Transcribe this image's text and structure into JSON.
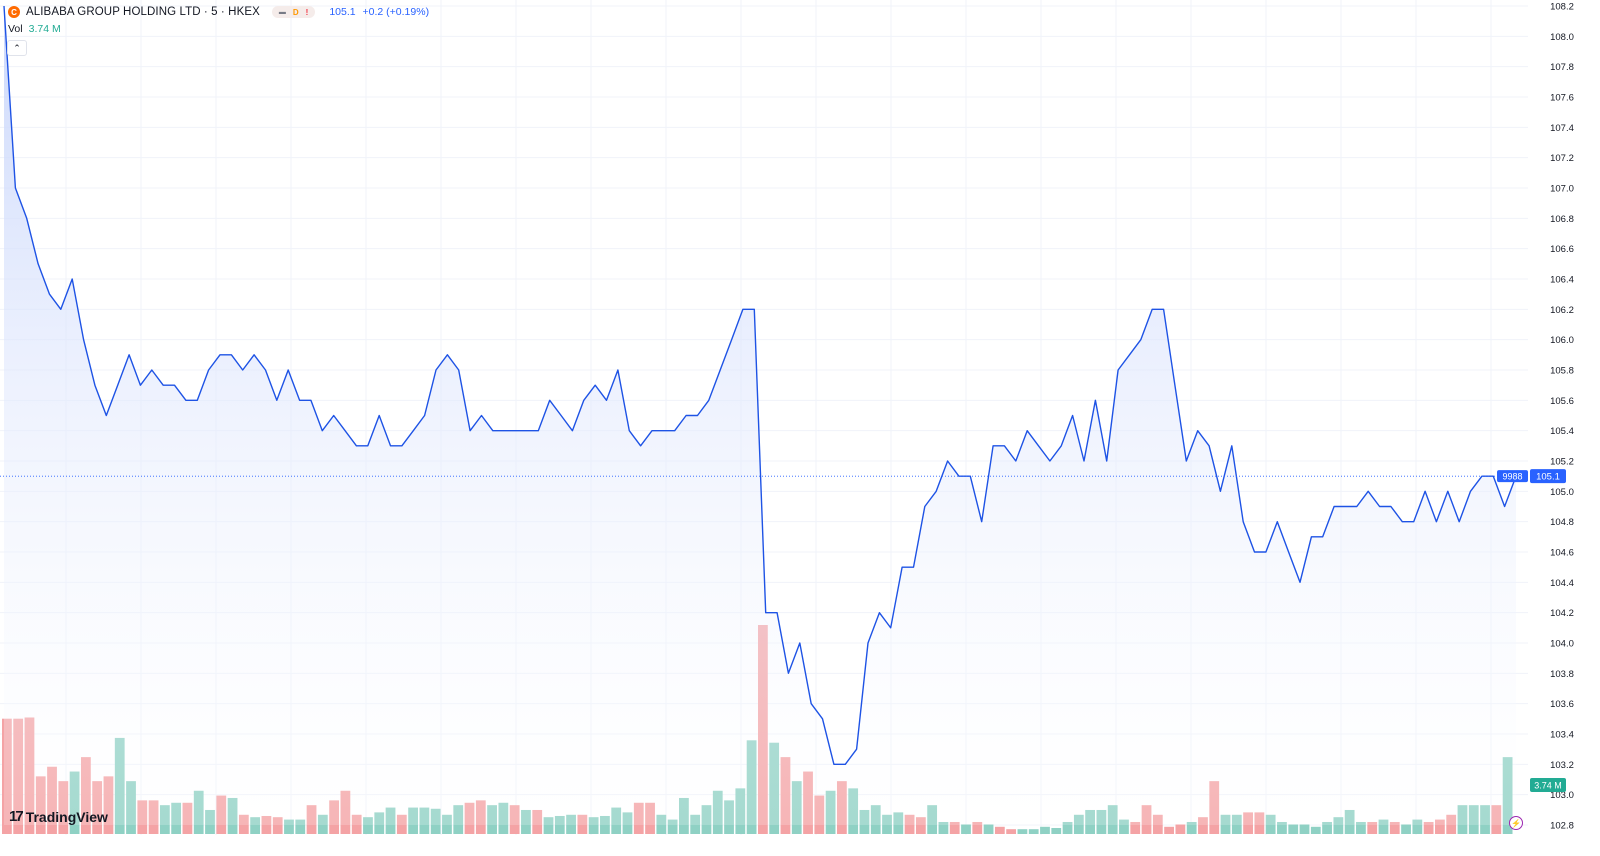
{
  "header": {
    "symbol_logo_icon": "alibaba-logo-icon",
    "symbol_title": "ALIBABA GROUP HOLDING LTD · 5 · HKEX",
    "pill_eye_icon": "eye-off-icon",
    "pill_d": "D",
    "pill_warn": "!",
    "last_price": "105.1",
    "change": "+0.2 (+0.19%)"
  },
  "volume_legend": {
    "label": "Vol",
    "value": "3.74 M",
    "collapse_icon": "chevron-up-icon"
  },
  "branding": {
    "logo_icon": "tradingview-logo-icon",
    "name": "TradingView"
  },
  "colors": {
    "line": "#1e53e5",
    "area_top": "#c6d4fb",
    "area_bottom": "#ffffff",
    "up_volume": "#8fd1c4",
    "down_volume": "#f4a3a5",
    "price_label_bg": "#2962ff",
    "volume_label_bg": "#22ab94",
    "grid": "#f0f3fa"
  },
  "price_labels": {
    "symbol_code": "9988",
    "last_price": "105.1",
    "volume": "3.74 M"
  },
  "replay_icon": "lightning-icon",
  "chart_data": {
    "type": "area",
    "title": "ALIBABA GROUP HOLDING LTD · 5 · HKEX",
    "ylim": [
      102.8,
      108.2
    ],
    "y_ticks": [
      "108.2",
      "108.0",
      "107.8",
      "107.6",
      "107.4",
      "107.2",
      "107.0",
      "106.8",
      "106.6",
      "106.4",
      "106.2",
      "106.0",
      "105.8",
      "105.6",
      "105.4",
      "105.2",
      "105.0",
      "104.8",
      "104.6",
      "104.4",
      "104.2",
      "104.0",
      "103.8",
      "103.6",
      "103.4",
      "103.2",
      "103.0",
      "102.8"
    ],
    "grid": true,
    "last_value": 105.1,
    "series": [
      {
        "values": [
          108.2,
          107.0,
          106.8,
          106.5,
          106.3,
          106.2,
          106.4,
          106.0,
          105.7,
          105.5,
          105.7,
          105.9,
          105.7,
          105.8,
          105.7,
          105.7,
          105.6,
          105.6,
          105.8,
          105.9,
          105.9,
          105.8,
          105.9,
          105.8,
          105.6,
          105.8,
          105.6,
          105.6,
          105.4,
          105.5,
          105.4,
          105.3,
          105.3,
          105.5,
          105.3,
          105.3,
          105.4,
          105.5,
          105.8,
          105.9,
          105.8,
          105.4,
          105.5,
          105.4,
          105.4,
          105.4,
          105.4,
          105.4,
          105.6,
          105.5,
          105.4,
          105.6,
          105.7,
          105.6,
          105.8,
          105.4,
          105.3,
          105.4,
          105.4,
          105.4,
          105.5,
          105.5,
          105.6,
          105.8,
          106.0,
          106.2,
          106.2,
          104.2,
          104.2,
          103.8,
          104.0,
          103.6,
          103.5,
          103.2,
          103.2,
          103.3,
          104.0,
          104.2,
          104.1,
          104.5,
          104.5,
          104.9,
          105.0,
          105.2,
          105.1,
          105.1,
          104.8,
          105.3,
          105.3,
          105.2,
          105.4,
          105.3,
          105.2,
          105.3,
          105.5,
          105.2,
          105.6,
          105.2,
          105.8,
          105.9,
          106.0,
          106.2,
          106.2,
          105.7,
          105.2,
          105.4,
          105.3,
          105.0,
          105.3,
          104.8,
          104.6,
          104.6,
          104.8,
          104.6,
          104.4,
          104.7,
          104.7,
          104.9,
          104.9,
          104.9,
          105.0,
          104.9,
          104.9,
          104.8,
          104.8,
          105.0,
          104.8,
          105.0,
          104.8,
          105.0,
          105.1,
          105.1,
          104.9,
          105.1
        ]
      }
    ],
    "volume": [
      {
        "v": 4.8,
        "up": false
      },
      {
        "v": 4.8,
        "up": false
      },
      {
        "v": 4.85,
        "up": false
      },
      {
        "v": 2.4,
        "up": false
      },
      {
        "v": 2.8,
        "up": false
      },
      {
        "v": 2.2,
        "up": false
      },
      {
        "v": 2.6,
        "up": true
      },
      {
        "v": 3.2,
        "up": false
      },
      {
        "v": 2.2,
        "up": false
      },
      {
        "v": 2.4,
        "up": false
      },
      {
        "v": 4.0,
        "up": true
      },
      {
        "v": 2.2,
        "up": true
      },
      {
        "v": 1.4,
        "up": false
      },
      {
        "v": 1.4,
        "up": false
      },
      {
        "v": 1.2,
        "up": true
      },
      {
        "v": 1.3,
        "up": true
      },
      {
        "v": 1.3,
        "up": false
      },
      {
        "v": 1.8,
        "up": true
      },
      {
        "v": 1.0,
        "up": true
      },
      {
        "v": 1.6,
        "up": false
      },
      {
        "v": 1.5,
        "up": true
      },
      {
        "v": 0.8,
        "up": false
      },
      {
        "v": 0.7,
        "up": true
      },
      {
        "v": 0.75,
        "up": false
      },
      {
        "v": 0.7,
        "up": false
      },
      {
        "v": 0.6,
        "up": true
      },
      {
        "v": 0.6,
        "up": true
      },
      {
        "v": 1.2,
        "up": false
      },
      {
        "v": 0.8,
        "up": true
      },
      {
        "v": 1.4,
        "up": false
      },
      {
        "v": 1.8,
        "up": false
      },
      {
        "v": 0.8,
        "up": false
      },
      {
        "v": 0.7,
        "up": true
      },
      {
        "v": 0.9,
        "up": true
      },
      {
        "v": 1.1,
        "up": true
      },
      {
        "v": 0.8,
        "up": false
      },
      {
        "v": 1.1,
        "up": true
      },
      {
        "v": 1.1,
        "up": true
      },
      {
        "v": 1.05,
        "up": true
      },
      {
        "v": 0.8,
        "up": true
      },
      {
        "v": 1.2,
        "up": true
      },
      {
        "v": 1.3,
        "up": false
      },
      {
        "v": 1.4,
        "up": false
      },
      {
        "v": 1.2,
        "up": true
      },
      {
        "v": 1.3,
        "up": true
      },
      {
        "v": 1.2,
        "up": false
      },
      {
        "v": 1.0,
        "up": true
      },
      {
        "v": 1.0,
        "up": false
      },
      {
        "v": 0.7,
        "up": true
      },
      {
        "v": 0.75,
        "up": true
      },
      {
        "v": 0.8,
        "up": true
      },
      {
        "v": 0.8,
        "up": false
      },
      {
        "v": 0.7,
        "up": true
      },
      {
        "v": 0.75,
        "up": true
      },
      {
        "v": 1.1,
        "up": true
      },
      {
        "v": 0.9,
        "up": true
      },
      {
        "v": 1.3,
        "up": false
      },
      {
        "v": 1.3,
        "up": false
      },
      {
        "v": 0.8,
        "up": true
      },
      {
        "v": 0.6,
        "up": true
      },
      {
        "v": 1.5,
        "up": true
      },
      {
        "v": 0.8,
        "up": true
      },
      {
        "v": 1.2,
        "up": true
      },
      {
        "v": 1.8,
        "up": true
      },
      {
        "v": 1.4,
        "up": true
      },
      {
        "v": 1.9,
        "up": true
      },
      {
        "v": 3.9,
        "up": true
      },
      {
        "v": 8.7,
        "up": false
      },
      {
        "v": 3.8,
        "up": true
      },
      {
        "v": 3.2,
        "up": false
      },
      {
        "v": 2.2,
        "up": true
      },
      {
        "v": 2.6,
        "up": false
      },
      {
        "v": 1.6,
        "up": false
      },
      {
        "v": 1.8,
        "up": true
      },
      {
        "v": 2.2,
        "up": false
      },
      {
        "v": 1.9,
        "up": true
      },
      {
        "v": 1.0,
        "up": true
      },
      {
        "v": 1.2,
        "up": true
      },
      {
        "v": 0.8,
        "up": true
      },
      {
        "v": 0.9,
        "up": true
      },
      {
        "v": 0.8,
        "up": false
      },
      {
        "v": 0.7,
        "up": false
      },
      {
        "v": 1.2,
        "up": true
      },
      {
        "v": 0.5,
        "up": true
      },
      {
        "v": 0.5,
        "up": false
      },
      {
        "v": 0.4,
        "up": true
      },
      {
        "v": 0.5,
        "up": false
      },
      {
        "v": 0.4,
        "up": true
      },
      {
        "v": 0.3,
        "up": false
      },
      {
        "v": 0.2,
        "up": false
      },
      {
        "v": 0.2,
        "up": true
      },
      {
        "v": 0.2,
        "up": true
      },
      {
        "v": 0.3,
        "up": true
      },
      {
        "v": 0.25,
        "up": true
      },
      {
        "v": 0.5,
        "up": true
      },
      {
        "v": 0.8,
        "up": true
      },
      {
        "v": 1.0,
        "up": true
      },
      {
        "v": 1.0,
        "up": true
      },
      {
        "v": 1.2,
        "up": true
      },
      {
        "v": 0.6,
        "up": true
      },
      {
        "v": 0.5,
        "up": false
      },
      {
        "v": 1.2,
        "up": false
      },
      {
        "v": 0.8,
        "up": false
      },
      {
        "v": 0.3,
        "up": false
      },
      {
        "v": 0.4,
        "up": false
      },
      {
        "v": 0.5,
        "up": true
      },
      {
        "v": 0.7,
        "up": false
      },
      {
        "v": 2.2,
        "up": false
      },
      {
        "v": 0.8,
        "up": true
      },
      {
        "v": 0.8,
        "up": true
      },
      {
        "v": 0.9,
        "up": false
      },
      {
        "v": 0.9,
        "up": false
      },
      {
        "v": 0.8,
        "up": true
      },
      {
        "v": 0.5,
        "up": true
      },
      {
        "v": 0.4,
        "up": true
      },
      {
        "v": 0.4,
        "up": true
      },
      {
        "v": 0.3,
        "up": true
      },
      {
        "v": 0.5,
        "up": true
      },
      {
        "v": 0.7,
        "up": true
      },
      {
        "v": 1.0,
        "up": true
      },
      {
        "v": 0.5,
        "up": true
      },
      {
        "v": 0.5,
        "up": false
      },
      {
        "v": 0.6,
        "up": true
      },
      {
        "v": 0.5,
        "up": false
      },
      {
        "v": 0.4,
        "up": true
      },
      {
        "v": 0.6,
        "up": true
      },
      {
        "v": 0.5,
        "up": false
      },
      {
        "v": 0.6,
        "up": false
      },
      {
        "v": 0.8,
        "up": false
      },
      {
        "v": 1.2,
        "up": true
      },
      {
        "v": 1.2,
        "up": true
      },
      {
        "v": 1.2,
        "up": true
      },
      {
        "v": 1.2,
        "up": false
      },
      {
        "v": 3.2,
        "up": true
      }
    ]
  }
}
